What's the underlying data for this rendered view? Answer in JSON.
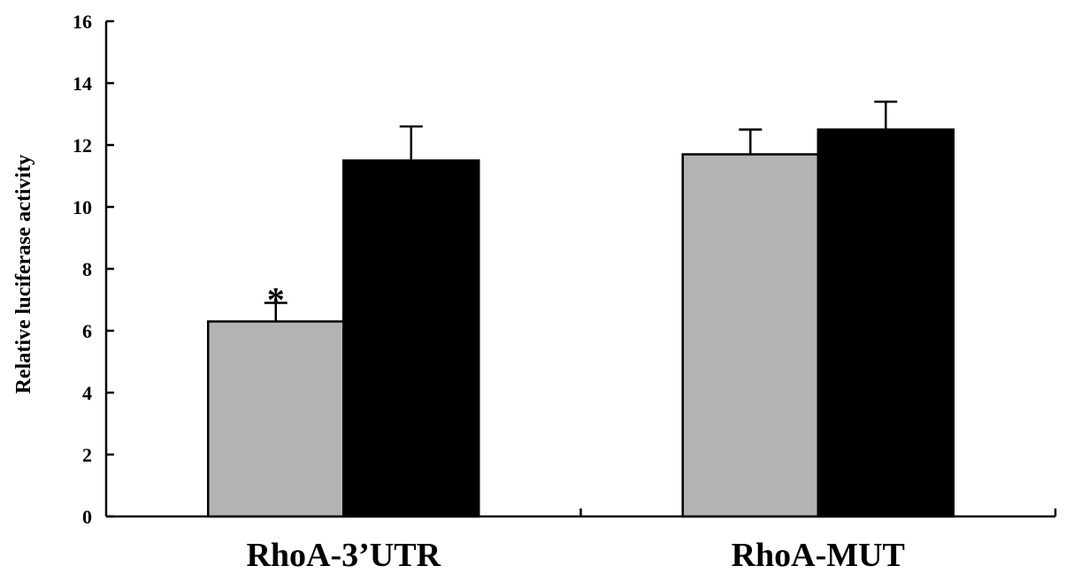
{
  "chart_data": {
    "type": "bar",
    "title": "",
    "xlabel": "",
    "ylabel": "Relative luciferase activity",
    "ylim": [
      0,
      16
    ],
    "yticks": [
      0,
      2,
      4,
      6,
      8,
      10,
      12,
      14,
      16
    ],
    "grid": false,
    "categories": [
      "RhoA-3’UTR",
      "RhoA-MUT"
    ],
    "series": [
      {
        "values": [
          6.3,
          11.7
        ],
        "errors": [
          0.6,
          0.8
        ],
        "color": "#b3b3b3"
      },
      {
        "values": [
          11.5,
          12.5
        ],
        "errors": [
          1.1,
          0.9
        ],
        "color": "#000000"
      }
    ],
    "annotations": [
      {
        "text": "*",
        "category_index": 0,
        "series_index": 0
      }
    ]
  }
}
